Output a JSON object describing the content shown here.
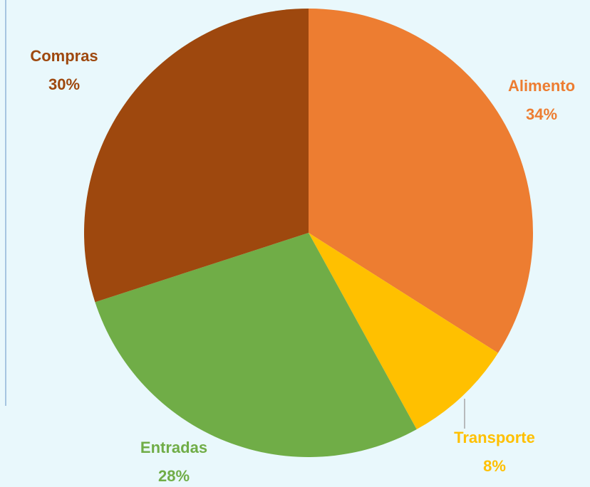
{
  "chart_data": {
    "type": "pie",
    "categories": [
      "Alimento",
      "Transporte",
      "Entradas",
      "Compras"
    ],
    "values": [
      34,
      8,
      28,
      30
    ],
    "value_labels": [
      "34%",
      "8%",
      "28%",
      "30%"
    ],
    "colors": [
      "#ed7d31",
      "#ffc000",
      "#70ad47",
      "#9e480e"
    ]
  }
}
